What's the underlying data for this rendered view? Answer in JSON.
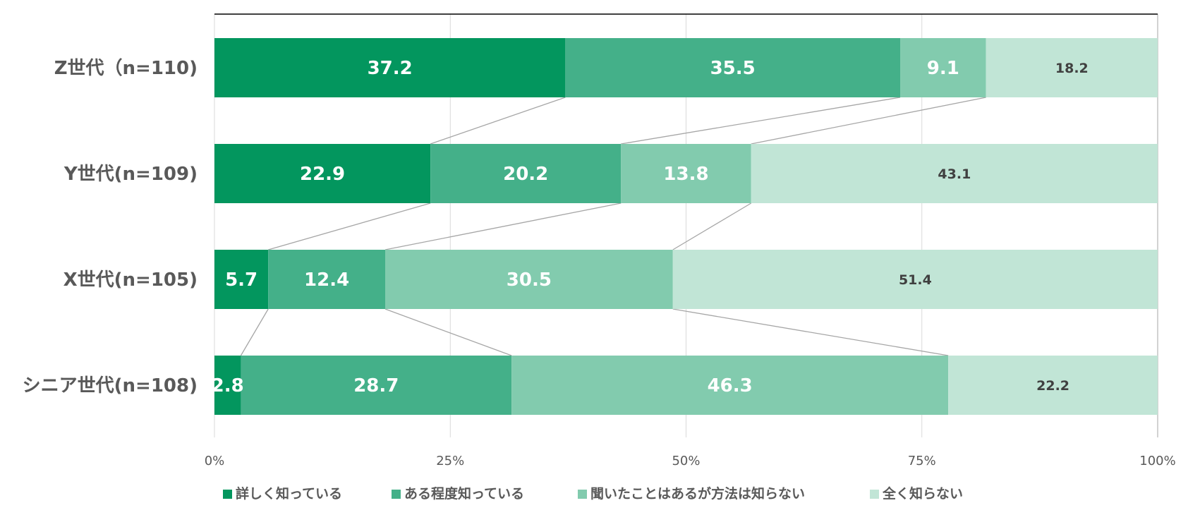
{
  "chart_data": {
    "type": "bar",
    "orientation": "horizontal",
    "stacked": true,
    "percent": true,
    "categories": [
      "Z世代（n=110)",
      "Y世代(n=109)",
      "X世代(n=105)",
      "シニア世代(n=108)"
    ],
    "series": [
      {
        "name": "詳しく知っている",
        "color": "#03965E",
        "label_color": "#FFFFFF",
        "values": [
          37.2,
          22.9,
          5.7,
          2.8
        ]
      },
      {
        "name": "ある程度知っている",
        "color": "#44B089",
        "label_color": "#FFFFFF",
        "values": [
          35.5,
          20.2,
          12.4,
          28.7
        ]
      },
      {
        "name": "聞いたことはあるが方法は知らない",
        "color": "#82CBAE",
        "label_color": "#FFFFFF",
        "values": [
          9.1,
          13.8,
          30.5,
          46.3
        ]
      },
      {
        "name": "全く知らない",
        "color": "#C1E5D6",
        "label_color": "#404040",
        "values": [
          18.2,
          43.1,
          51.4,
          22.2
        ]
      }
    ],
    "x_ticks": [
      "0%",
      "25%",
      "50%",
      "75%",
      "100%"
    ],
    "xlim": [
      0,
      100
    ],
    "grid": true,
    "series_lines": true,
    "legend": "bottom",
    "title": "",
    "xlabel": "",
    "ylabel": ""
  }
}
